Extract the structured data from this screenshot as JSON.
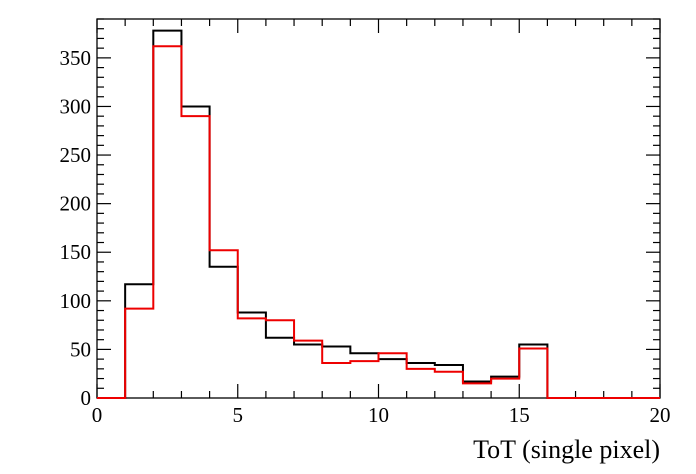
{
  "chart_data": {
    "type": "histogram",
    "title": "",
    "xlabel": "ToT (single pixel)",
    "ylabel": "",
    "xlim": [
      0,
      20
    ],
    "ylim": [
      0,
      390
    ],
    "bins": [
      0,
      1,
      2,
      3,
      4,
      5,
      6,
      7,
      8,
      9,
      10,
      11,
      12,
      13,
      14,
      15,
      16,
      17,
      18,
      19,
      20
    ],
    "x_ticks": [
      0,
      5,
      10,
      15,
      20
    ],
    "y_ticks": [
      0,
      50,
      100,
      150,
      200,
      250,
      300,
      350
    ],
    "x_minor_step": 1,
    "y_minor_step": 10,
    "grid": false,
    "legend": "none",
    "series": [
      {
        "color": "#000000",
        "values": [
          0,
          117,
          378,
          300,
          135,
          88,
          62,
          55,
          53,
          46,
          40,
          36,
          34,
          17,
          22,
          55,
          0,
          0,
          0,
          0
        ]
      },
      {
        "color": "#ee0000",
        "values": [
          0,
          92,
          362,
          290,
          152,
          82,
          80,
          59,
          36,
          38,
          46,
          30,
          27,
          15,
          20,
          51,
          0,
          0,
          0,
          0
        ]
      }
    ]
  }
}
